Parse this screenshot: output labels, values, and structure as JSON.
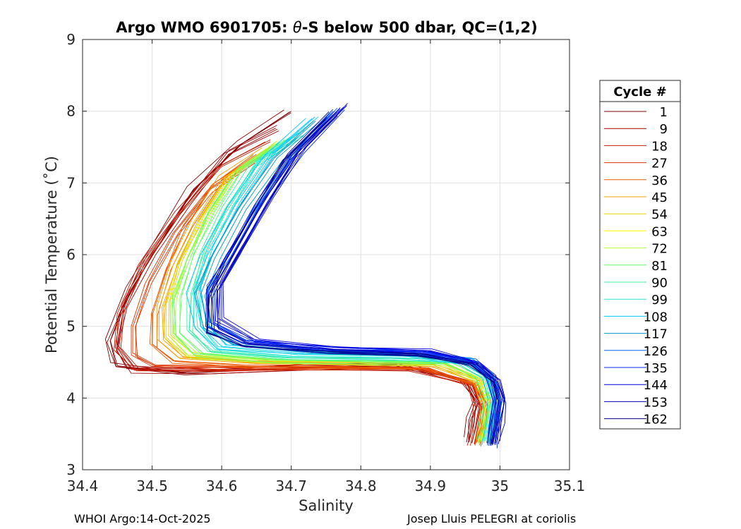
{
  "chart_data": {
    "type": "line",
    "title_prefix": "Argo WMO 6901705: ",
    "title_theta": "θ",
    "title_suffix": "-S below 500 dbar,  QC=(1,2)",
    "xlabel": "Salinity",
    "ylabel": "Potential Temperature (˚C)",
    "xlim": [
      34.4,
      35.1
    ],
    "ylim": [
      3,
      9
    ],
    "xticks": [
      "34.4",
      "34.5",
      "34.6",
      "34.7",
      "34.8",
      "34.9",
      "35",
      "35.1"
    ],
    "yticks": [
      "3",
      "4",
      "5",
      "6",
      "7",
      "8",
      "9"
    ],
    "grid": true,
    "legend": {
      "title": "Cycle #",
      "placement": "right",
      "entries": [
        {
          "label": "1",
          "color": "#800000"
        },
        {
          "label": "9",
          "color": "#a00000"
        },
        {
          "label": "18",
          "color": "#c51a00"
        },
        {
          "label": "27",
          "color": "#e03600"
        },
        {
          "label": "36",
          "color": "#ef5a00"
        },
        {
          "label": "45",
          "color": "#f5a000"
        },
        {
          "label": "54",
          "color": "#e6d200"
        },
        {
          "label": "63",
          "color": "#ffff00"
        },
        {
          "label": "72",
          "color": "#b4ff3c"
        },
        {
          "label": "81",
          "color": "#64ff64"
        },
        {
          "label": "90",
          "color": "#3cf0a0"
        },
        {
          "label": "99",
          "color": "#28e6d2"
        },
        {
          "label": "108",
          "color": "#00c8ff"
        },
        {
          "label": "117",
          "color": "#0096c8"
        },
        {
          "label": "126",
          "color": "#0064ff"
        },
        {
          "label": "135",
          "color": "#0028ff"
        },
        {
          "label": "144",
          "color": "#0000e0"
        },
        {
          "label": "153",
          "color": "#0000b4"
        },
        {
          "label": "162",
          "color": "#00008c"
        }
      ]
    },
    "series": [
      {
        "group": "early",
        "color": "#800000",
        "points": [
          [
            34.7,
            8.0
          ],
          [
            34.63,
            7.55
          ],
          [
            34.56,
            6.9
          ],
          [
            34.52,
            6.3
          ],
          [
            34.47,
            5.5
          ],
          [
            34.44,
            4.8
          ],
          [
            34.45,
            4.45
          ],
          [
            34.55,
            4.35
          ],
          [
            34.7,
            4.42
          ],
          [
            34.85,
            4.45
          ],
          [
            34.95,
            4.25
          ],
          [
            34.97,
            3.95
          ],
          [
            34.96,
            3.7
          ],
          [
            34.955,
            3.4
          ]
        ]
      },
      {
        "group": "early",
        "color": "#a00000",
        "points": [
          [
            34.68,
            7.75
          ],
          [
            34.61,
            7.4
          ],
          [
            34.55,
            6.7
          ],
          [
            34.5,
            6.0
          ],
          [
            34.46,
            5.3
          ],
          [
            34.45,
            4.7
          ],
          [
            34.47,
            4.4
          ],
          [
            34.58,
            4.38
          ],
          [
            34.72,
            4.42
          ],
          [
            34.87,
            4.43
          ],
          [
            34.955,
            4.22
          ],
          [
            34.97,
            3.9
          ],
          [
            34.965,
            3.6
          ],
          [
            34.96,
            3.38
          ]
        ]
      },
      {
        "group": "early",
        "color": "#c51a00",
        "points": [
          [
            34.67,
            7.6
          ],
          [
            34.6,
            7.25
          ],
          [
            34.54,
            6.6
          ],
          [
            34.49,
            5.9
          ],
          [
            34.46,
            5.2
          ],
          [
            34.455,
            4.7
          ],
          [
            34.48,
            4.42
          ],
          [
            34.6,
            4.4
          ],
          [
            34.75,
            4.43
          ],
          [
            34.88,
            4.42
          ],
          [
            34.96,
            4.2
          ],
          [
            34.972,
            3.9
          ],
          [
            34.968,
            3.6
          ],
          [
            34.963,
            3.36
          ]
        ]
      },
      {
        "group": "early",
        "color": "#e03600",
        "points": [
          [
            34.64,
            7.3
          ],
          [
            34.58,
            6.9
          ],
          [
            34.53,
            6.3
          ],
          [
            34.49,
            5.6
          ],
          [
            34.47,
            5.0
          ],
          [
            34.47,
            4.6
          ],
          [
            34.5,
            4.44
          ],
          [
            34.62,
            4.42
          ],
          [
            34.77,
            4.44
          ],
          [
            34.89,
            4.41
          ],
          [
            34.962,
            4.18
          ],
          [
            34.975,
            3.88
          ],
          [
            34.97,
            3.6
          ],
          [
            34.965,
            3.37
          ]
        ]
      },
      {
        "group": "mid",
        "color": "#ef5a00",
        "points": [
          [
            34.65,
            7.4
          ],
          [
            34.59,
            7.0
          ],
          [
            34.55,
            6.4
          ],
          [
            34.52,
            5.8
          ],
          [
            34.5,
            5.2
          ],
          [
            34.5,
            4.75
          ],
          [
            34.53,
            4.52
          ],
          [
            34.64,
            4.46
          ],
          [
            34.78,
            4.46
          ],
          [
            34.89,
            4.42
          ],
          [
            34.965,
            4.2
          ],
          [
            34.977,
            3.9
          ],
          [
            34.973,
            3.62
          ],
          [
            34.967,
            3.38
          ]
        ]
      },
      {
        "group": "mid",
        "color": "#f5a000",
        "points": [
          [
            34.66,
            7.45
          ],
          [
            34.6,
            7.05
          ],
          [
            34.56,
            6.45
          ],
          [
            34.53,
            5.85
          ],
          [
            34.51,
            5.25
          ],
          [
            34.51,
            4.8
          ],
          [
            34.54,
            4.55
          ],
          [
            34.65,
            4.48
          ],
          [
            34.79,
            4.47
          ],
          [
            34.9,
            4.44
          ],
          [
            34.968,
            4.22
          ],
          [
            34.979,
            3.92
          ],
          [
            34.975,
            3.63
          ],
          [
            34.969,
            3.38
          ]
        ]
      },
      {
        "group": "mid",
        "color": "#e6d200",
        "points": [
          [
            34.67,
            7.5
          ],
          [
            34.61,
            7.1
          ],
          [
            34.57,
            6.5
          ],
          [
            34.54,
            5.9
          ],
          [
            34.52,
            5.3
          ],
          [
            34.52,
            4.85
          ],
          [
            34.55,
            4.58
          ],
          [
            34.66,
            4.5
          ],
          [
            34.8,
            4.49
          ],
          [
            34.91,
            4.46
          ],
          [
            34.97,
            4.24
          ],
          [
            34.981,
            3.94
          ],
          [
            34.977,
            3.64
          ],
          [
            34.971,
            3.39
          ]
        ]
      },
      {
        "group": "mid",
        "color": "#b4ff3c",
        "points": [
          [
            34.68,
            7.55
          ],
          [
            34.62,
            7.15
          ],
          [
            34.58,
            6.55
          ],
          [
            34.55,
            5.95
          ],
          [
            34.53,
            5.35
          ],
          [
            34.53,
            4.88
          ],
          [
            34.56,
            4.6
          ],
          [
            34.67,
            4.52
          ],
          [
            34.81,
            4.5
          ],
          [
            34.92,
            4.48
          ],
          [
            34.972,
            4.26
          ],
          [
            34.983,
            3.95
          ],
          [
            34.979,
            3.65
          ],
          [
            34.973,
            3.39
          ]
        ]
      },
      {
        "group": "mid",
        "color": "#64ff64",
        "points": [
          [
            34.69,
            7.6
          ],
          [
            34.63,
            7.2
          ],
          [
            34.59,
            6.6
          ],
          [
            34.56,
            6.0
          ],
          [
            34.54,
            5.4
          ],
          [
            34.54,
            4.9
          ],
          [
            34.57,
            4.62
          ],
          [
            34.68,
            4.54
          ],
          [
            34.82,
            4.52
          ],
          [
            34.93,
            4.5
          ],
          [
            34.975,
            4.28
          ],
          [
            34.985,
            3.96
          ],
          [
            34.981,
            3.66
          ],
          [
            34.975,
            3.4
          ]
        ]
      },
      {
        "group": "mid",
        "color": "#3cf0a0",
        "points": [
          [
            34.7,
            7.65
          ],
          [
            34.64,
            7.25
          ],
          [
            34.6,
            6.65
          ],
          [
            34.57,
            6.05
          ],
          [
            34.55,
            5.45
          ],
          [
            34.55,
            4.95
          ],
          [
            34.58,
            4.65
          ],
          [
            34.69,
            4.56
          ],
          [
            34.83,
            4.55
          ],
          [
            34.95,
            4.55
          ],
          [
            34.977,
            4.3
          ],
          [
            34.987,
            3.97
          ],
          [
            34.983,
            3.67
          ],
          [
            34.977,
            3.4
          ]
        ]
      },
      {
        "group": "mid",
        "color": "#28e6d2",
        "points": [
          [
            34.71,
            7.7
          ],
          [
            34.65,
            7.3
          ],
          [
            34.61,
            6.7
          ],
          [
            34.58,
            6.1
          ],
          [
            34.56,
            5.5
          ],
          [
            34.56,
            5.0
          ],
          [
            34.59,
            4.68
          ],
          [
            34.7,
            4.58
          ],
          [
            34.84,
            4.57
          ],
          [
            34.94,
            4.52
          ],
          [
            34.979,
            4.3
          ],
          [
            34.989,
            3.98
          ],
          [
            34.985,
            3.67
          ],
          [
            34.979,
            3.4
          ]
        ]
      },
      {
        "group": "late",
        "color": "#00c8ff",
        "points": [
          [
            34.73,
            7.9
          ],
          [
            34.67,
            7.4
          ],
          [
            34.62,
            6.7
          ],
          [
            34.58,
            6.0
          ],
          [
            34.56,
            5.5
          ],
          [
            34.57,
            5.0
          ],
          [
            34.6,
            4.72
          ],
          [
            34.72,
            4.62
          ],
          [
            34.86,
            4.6
          ],
          [
            34.95,
            4.52
          ],
          [
            34.982,
            4.3
          ],
          [
            34.992,
            3.98
          ],
          [
            34.988,
            3.67
          ],
          [
            34.982,
            3.38
          ]
        ]
      },
      {
        "group": "late",
        "color": "#0096c8",
        "points": [
          [
            34.74,
            7.85
          ],
          [
            34.68,
            7.35
          ],
          [
            34.63,
            6.65
          ],
          [
            34.59,
            5.95
          ],
          [
            34.57,
            5.45
          ],
          [
            34.58,
            4.95
          ],
          [
            34.62,
            4.74
          ],
          [
            34.74,
            4.64
          ],
          [
            34.87,
            4.62
          ],
          [
            34.955,
            4.5
          ],
          [
            34.985,
            4.28
          ],
          [
            34.994,
            3.97
          ],
          [
            34.99,
            3.66
          ],
          [
            34.984,
            3.37
          ]
        ]
      },
      {
        "group": "late",
        "color": "#0064ff",
        "points": [
          [
            34.76,
            8.0
          ],
          [
            34.7,
            7.4
          ],
          [
            34.65,
            6.7
          ],
          [
            34.61,
            6.0
          ],
          [
            34.58,
            5.5
          ],
          [
            34.58,
            5.0
          ],
          [
            34.63,
            4.76
          ],
          [
            34.75,
            4.66
          ],
          [
            34.88,
            4.63
          ],
          [
            34.96,
            4.5
          ],
          [
            34.988,
            4.28
          ],
          [
            34.997,
            3.97
          ],
          [
            34.993,
            3.66
          ],
          [
            34.987,
            3.36
          ]
        ]
      },
      {
        "group": "late",
        "color": "#0028ff",
        "points": [
          [
            34.77,
            8.03
          ],
          [
            34.71,
            7.45
          ],
          [
            34.66,
            6.75
          ],
          [
            34.62,
            6.05
          ],
          [
            34.59,
            5.55
          ],
          [
            34.59,
            5.05
          ],
          [
            34.64,
            4.78
          ],
          [
            34.76,
            4.68
          ],
          [
            34.89,
            4.65
          ],
          [
            34.965,
            4.5
          ],
          [
            34.99,
            4.28
          ],
          [
            34.999,
            3.97
          ],
          [
            34.995,
            3.66
          ],
          [
            34.989,
            3.35
          ]
        ]
      },
      {
        "group": "late",
        "color": "#0000e0",
        "points": [
          [
            34.78,
            8.08
          ],
          [
            34.72,
            7.5
          ],
          [
            34.67,
            6.8
          ],
          [
            34.63,
            6.1
          ],
          [
            34.6,
            5.6
          ],
          [
            34.6,
            5.1
          ],
          [
            34.65,
            4.8
          ],
          [
            34.77,
            4.7
          ],
          [
            34.9,
            4.66
          ],
          [
            34.97,
            4.5
          ],
          [
            34.993,
            4.3
          ],
          [
            35.002,
            3.98
          ],
          [
            34.998,
            3.67
          ],
          [
            34.992,
            3.35
          ]
        ]
      },
      {
        "group": "late",
        "color": "#0000b4",
        "points": [
          [
            34.76,
            7.95
          ],
          [
            34.7,
            7.38
          ],
          [
            34.655,
            6.68
          ],
          [
            34.615,
            5.98
          ],
          [
            34.585,
            5.48
          ],
          [
            34.585,
            4.98
          ],
          [
            34.635,
            4.75
          ],
          [
            34.755,
            4.65
          ],
          [
            34.885,
            4.62
          ],
          [
            34.96,
            4.48
          ],
          [
            34.992,
            4.25
          ],
          [
            35.0,
            3.96
          ],
          [
            34.996,
            3.65
          ],
          [
            34.99,
            3.36
          ]
        ]
      },
      {
        "group": "late",
        "color": "#00008c",
        "points": [
          [
            34.75,
            7.9
          ],
          [
            34.69,
            7.3
          ],
          [
            34.645,
            6.6
          ],
          [
            34.605,
            5.9
          ],
          [
            34.58,
            5.4
          ],
          [
            34.58,
            4.92
          ],
          [
            34.63,
            4.72
          ],
          [
            34.75,
            4.63
          ],
          [
            34.88,
            4.6
          ],
          [
            34.958,
            4.46
          ],
          [
            34.99,
            4.22
          ],
          [
            34.998,
            3.94
          ],
          [
            34.994,
            3.64
          ],
          [
            34.988,
            3.36
          ]
        ]
      }
    ]
  },
  "footer": {
    "left": "WHOI Argo:14-Oct-2025",
    "right": "Josep Lluis PELEGRI at coriolis"
  }
}
